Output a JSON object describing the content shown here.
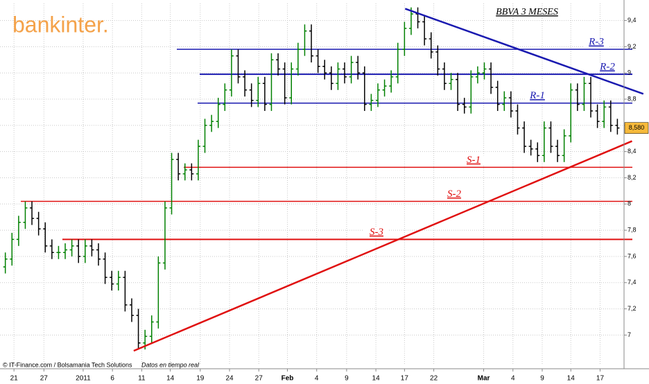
{
  "chart_data": {
    "type": "ohlc",
    "title": "BBVA 3 MESES",
    "logo": "bankinter.",
    "footer": "© IT-Finance.com / Bolsamania Tech Solutions",
    "footer_note": "Datos en tiempo real",
    "up_color": "#008000",
    "down_color": "#000000",
    "open": [
      7.52,
      7.58,
      7.73,
      7.86,
      7.97,
      7.89,
      7.81,
      7.68,
      7.63,
      7.63,
      7.65,
      7.68,
      7.6,
      7.68,
      7.65,
      7.58,
      7.44,
      7.39,
      7.44,
      7.23,
      7.15,
      6.94,
      6.99,
      7.1,
      7.55,
      7.97,
      8.34,
      8.23,
      8.26,
      8.23,
      8.44,
      8.6,
      8.63,
      8.76,
      8.87,
      9.13,
      8.97,
      8.87,
      8.79,
      8.92,
      8.76,
      9.1,
      9.03,
      8.81,
      9.03,
      9.18,
      9.32,
      9.13,
      9.05,
      9.0,
      8.92,
      9.03,
      8.97,
      9.08,
      9.0,
      8.76,
      8.79,
      8.87,
      8.9,
      8.97,
      9.18,
      9.34,
      9.45,
      9.39,
      9.26,
      9.16,
      9.03,
      8.92,
      8.95,
      8.76,
      8.74,
      8.97,
      9.0,
      9.03,
      8.89,
      8.76,
      8.81,
      8.71,
      8.58,
      8.44,
      8.42,
      8.37,
      8.58,
      8.44,
      8.37,
      8.52,
      8.87,
      8.76,
      8.92,
      8.71,
      8.63,
      8.74,
      8.6
    ],
    "high": [
      7.63,
      7.78,
      7.91,
      8.02,
      8.02,
      7.94,
      7.86,
      7.73,
      7.68,
      7.7,
      7.73,
      7.73,
      7.73,
      7.73,
      7.7,
      7.63,
      7.49,
      7.49,
      7.49,
      7.28,
      7.2,
      7.04,
      7.15,
      7.6,
      8.02,
      8.39,
      8.39,
      8.31,
      8.31,
      8.49,
      8.65,
      8.68,
      8.81,
      8.92,
      9.18,
      9.18,
      9.02,
      8.92,
      8.97,
      8.97,
      9.15,
      9.15,
      9.08,
      9.08,
      9.23,
      9.37,
      9.37,
      9.18,
      9.1,
      9.05,
      9.08,
      9.08,
      9.13,
      9.13,
      9.05,
      8.84,
      8.92,
      8.95,
      9.02,
      9.23,
      9.39,
      9.5,
      9.5,
      9.44,
      9.31,
      9.21,
      9.08,
      9.0,
      9.0,
      8.81,
      9.02,
      9.05,
      9.08,
      9.08,
      8.94,
      8.86,
      8.86,
      8.76,
      8.63,
      8.49,
      8.47,
      8.63,
      8.63,
      8.49,
      8.57,
      8.92,
      8.92,
      8.97,
      8.97,
      8.76,
      8.79,
      8.79,
      8.65
    ],
    "low": [
      7.47,
      7.53,
      7.68,
      7.81,
      7.84,
      7.76,
      7.63,
      7.58,
      7.58,
      7.58,
      7.6,
      7.55,
      7.55,
      7.6,
      7.53,
      7.39,
      7.34,
      7.34,
      7.18,
      7.1,
      6.89,
      6.89,
      6.94,
      7.05,
      7.5,
      7.92,
      8.18,
      8.18,
      8.18,
      8.18,
      8.39,
      8.55,
      8.58,
      8.71,
      8.82,
      8.92,
      8.82,
      8.74,
      8.74,
      8.71,
      8.71,
      8.98,
      8.76,
      8.76,
      8.98,
      9.13,
      9.08,
      9.0,
      8.95,
      8.87,
      8.87,
      8.92,
      8.92,
      8.95,
      8.71,
      8.71,
      8.74,
      8.82,
      8.85,
      8.92,
      9.13,
      9.29,
      9.34,
      9.21,
      9.11,
      8.98,
      8.87,
      8.87,
      8.71,
      8.69,
      8.69,
      8.92,
      8.95,
      8.84,
      8.71,
      8.71,
      8.66,
      8.53,
      8.39,
      8.37,
      8.32,
      8.32,
      8.39,
      8.32,
      8.32,
      8.47,
      8.71,
      8.71,
      8.66,
      8.58,
      8.58,
      8.55,
      8.53
    ],
    "close": [
      7.58,
      7.73,
      7.86,
      7.97,
      7.89,
      7.81,
      7.68,
      7.63,
      7.63,
      7.65,
      7.68,
      7.6,
      7.68,
      7.65,
      7.58,
      7.44,
      7.39,
      7.44,
      7.23,
      7.15,
      6.94,
      6.99,
      7.1,
      7.55,
      7.97,
      8.34,
      8.23,
      8.26,
      8.23,
      8.44,
      8.6,
      8.63,
      8.76,
      8.87,
      9.13,
      8.97,
      8.87,
      8.79,
      8.92,
      8.76,
      9.1,
      9.03,
      8.81,
      9.03,
      9.18,
      9.32,
      9.13,
      9.05,
      9.0,
      8.92,
      9.03,
      8.97,
      9.08,
      9.0,
      8.76,
      8.79,
      8.87,
      8.9,
      8.97,
      9.18,
      9.34,
      9.45,
      9.39,
      9.26,
      9.16,
      9.03,
      8.92,
      8.95,
      8.76,
      8.74,
      8.97,
      9.0,
      9.03,
      8.89,
      8.76,
      8.81,
      8.71,
      8.58,
      8.44,
      8.42,
      8.37,
      8.58,
      8.44,
      8.37,
      8.52,
      8.87,
      8.76,
      8.92,
      8.71,
      8.63,
      8.74,
      8.6,
      8.58
    ],
    "last": {
      "value": 8.58,
      "label": "8,580"
    },
    "xlim": [
      -0.8,
      93
    ],
    "xticks": [
      {
        "value": 1.3,
        "label": "21"
      },
      {
        "value": 5.8,
        "label": "27"
      },
      {
        "value": 11.7,
        "label": "2011"
      },
      {
        "value": 16.1,
        "label": "6"
      },
      {
        "value": 20.5,
        "label": "11"
      },
      {
        "value": 24.8,
        "label": "14"
      },
      {
        "value": 29.3,
        "label": "19"
      },
      {
        "value": 33.7,
        "label": "24"
      },
      {
        "value": 38.1,
        "label": "27"
      },
      {
        "value": 42.4,
        "label": "Feb"
      },
      {
        "value": 46.8,
        "label": "4"
      },
      {
        "value": 51.3,
        "label": "9"
      },
      {
        "value": 55.7,
        "label": "14"
      },
      {
        "value": 60.0,
        "label": "17"
      },
      {
        "value": 64.4,
        "label": "22"
      },
      {
        "value": 71.9,
        "label": "Mar"
      },
      {
        "value": 76.3,
        "label": "4"
      },
      {
        "value": 80.7,
        "label": "9"
      },
      {
        "value": 85.0,
        "label": "14"
      },
      {
        "value": 89.4,
        "label": "17"
      }
    ],
    "ylim": [
      6.78,
      9.53
    ],
    "yticks": [
      7,
      {
        "value": 7.2,
        "label": "7,2"
      },
      {
        "value": 7.4,
        "label": "7,4"
      },
      {
        "value": 7.6,
        "label": "7,6"
      },
      {
        "value": 7.8,
        "label": "7,8"
      },
      8,
      {
        "value": 8.2,
        "label": "8,2"
      },
      {
        "value": 8.4,
        "label": "8,4"
      },
      {
        "value": 8.6,
        "label": "8,6"
      },
      {
        "value": 8.8,
        "label": "8,8"
      },
      9,
      {
        "value": 9.2,
        "label": "9,2"
      },
      {
        "value": 9.4,
        "label": "9,4"
      }
    ],
    "grid": true,
    "levels": [
      {
        "name": "R-3",
        "value": 9.18,
        "color": "#1a1ab0"
      },
      {
        "name": "R-2",
        "value": 8.99,
        "color": "#1a1ab0"
      },
      {
        "name": "R-1",
        "value": 8.77,
        "color": "#1a1ab0"
      },
      {
        "name": "S-1",
        "value": 8.28,
        "color": "#e01010"
      },
      {
        "name": "S-2",
        "value": 8.02,
        "color": "#e01010"
      },
      {
        "name": "S-3",
        "value": 7.73,
        "color": "#e01010"
      }
    ],
    "trendlines": [
      {
        "color": "#1a1ab0",
        "x": [
          60.1,
          95.9
        ],
        "y": [
          9.49,
          8.84
        ]
      },
      {
        "color": "#e01010",
        "x": [
          19.3,
          94.2
        ],
        "y": [
          6.88,
          8.48
        ]
      }
    ]
  }
}
